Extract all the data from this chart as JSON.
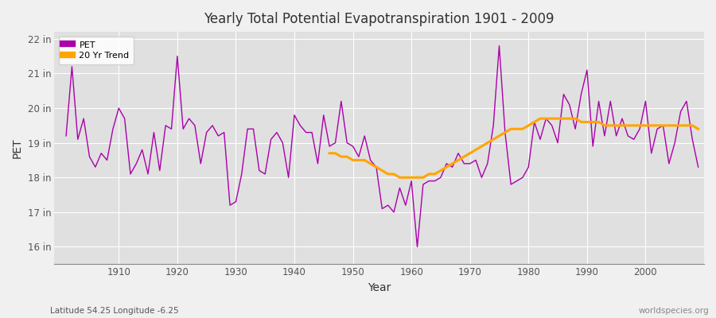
{
  "title": "Yearly Total Potential Evapotranspiration 1901 - 2009",
  "xlabel": "Year",
  "ylabel": "PET",
  "lat_lon_label": "Latitude 54.25 Longitude -6.25",
  "watermark": "worldspecies.org",
  "pet_color": "#AA00AA",
  "trend_color": "#FFA500",
  "bg_color": "#F0F0F0",
  "plot_bg_color": "#E0E0E0",
  "grid_color": "#FFFFFF",
  "ylim": [
    15.5,
    22.2
  ],
  "yticks": [
    16,
    17,
    18,
    19,
    20,
    21,
    22
  ],
  "ytick_labels": [
    "16 in",
    "17 in",
    "18 in",
    "19 in",
    "20 in",
    "21 in",
    "22 in"
  ],
  "xlim": [
    1899,
    2010
  ],
  "xticks": [
    1910,
    1920,
    1930,
    1940,
    1950,
    1960,
    1970,
    1980,
    1990,
    2000
  ],
  "years": [
    1901,
    1902,
    1903,
    1904,
    1905,
    1906,
    1907,
    1908,
    1909,
    1910,
    1911,
    1912,
    1913,
    1914,
    1915,
    1916,
    1917,
    1918,
    1919,
    1920,
    1921,
    1922,
    1923,
    1924,
    1925,
    1926,
    1927,
    1928,
    1929,
    1930,
    1931,
    1932,
    1933,
    1934,
    1935,
    1936,
    1937,
    1938,
    1939,
    1940,
    1941,
    1942,
    1943,
    1944,
    1945,
    1946,
    1947,
    1948,
    1949,
    1950,
    1951,
    1952,
    1953,
    1954,
    1955,
    1956,
    1957,
    1958,
    1959,
    1960,
    1961,
    1962,
    1963,
    1964,
    1965,
    1966,
    1967,
    1968,
    1969,
    1970,
    1971,
    1972,
    1973,
    1974,
    1975,
    1976,
    1977,
    1978,
    1979,
    1980,
    1981,
    1982,
    1983,
    1984,
    1985,
    1986,
    1987,
    1988,
    1989,
    1990,
    1991,
    1992,
    1993,
    1994,
    1995,
    1996,
    1997,
    1998,
    1999,
    2000,
    2001,
    2002,
    2003,
    2004,
    2005,
    2006,
    2007,
    2008,
    2009
  ],
  "pet_values": [
    19.2,
    21.2,
    19.1,
    19.7,
    18.6,
    18.3,
    18.7,
    18.5,
    19.4,
    20.0,
    19.7,
    18.1,
    18.4,
    18.8,
    18.1,
    19.3,
    18.2,
    19.5,
    19.4,
    21.5,
    19.4,
    19.7,
    19.5,
    18.4,
    19.3,
    19.5,
    19.2,
    19.3,
    17.2,
    17.3,
    18.1,
    19.4,
    19.4,
    18.2,
    18.1,
    19.1,
    19.3,
    19.0,
    18.0,
    19.8,
    19.5,
    19.3,
    19.3,
    18.4,
    19.8,
    18.9,
    19.0,
    20.2,
    19.0,
    18.9,
    18.6,
    19.2,
    18.5,
    18.3,
    17.1,
    17.2,
    17.0,
    17.7,
    17.2,
    17.9,
    16.0,
    17.8,
    17.9,
    17.9,
    18.0,
    18.4,
    18.3,
    18.7,
    18.4,
    18.4,
    18.5,
    18.0,
    18.4,
    19.5,
    21.8,
    19.3,
    17.8,
    17.9,
    18.0,
    18.3,
    19.6,
    19.1,
    19.7,
    19.5,
    19.0,
    20.4,
    20.1,
    19.4,
    20.4,
    21.1,
    18.9,
    20.2,
    19.2,
    20.2,
    19.2,
    19.7,
    19.2,
    19.1,
    19.4,
    20.2,
    18.7,
    19.4,
    19.5,
    18.4,
    19.0,
    19.9,
    20.2,
    19.1,
    18.3
  ],
  "trend_years": [
    1946,
    1947,
    1948,
    1949,
    1950,
    1951,
    1952,
    1953,
    1954,
    1955,
    1956,
    1957,
    1958,
    1959,
    1960,
    1961,
    1962,
    1963,
    1964,
    1965,
    1966,
    1967,
    1968,
    1969,
    1970,
    1971,
    1972,
    1973,
    1974,
    1975,
    1976,
    1977,
    1978,
    1979,
    1980,
    1981,
    1982,
    1983,
    1984,
    1985,
    1986,
    1987,
    1988,
    1989,
    1990,
    1991,
    1992,
    1993,
    1994,
    1995,
    1996,
    1997,
    1998,
    1999,
    2000,
    2001,
    2002,
    2003,
    2004,
    2005,
    2006,
    2007,
    2008,
    2009
  ],
  "trend_values": [
    18.7,
    18.7,
    18.6,
    18.6,
    18.5,
    18.5,
    18.5,
    18.4,
    18.3,
    18.2,
    18.1,
    18.1,
    18.0,
    18.0,
    18.0,
    18.0,
    18.0,
    18.1,
    18.1,
    18.2,
    18.3,
    18.4,
    18.5,
    18.6,
    18.7,
    18.8,
    18.9,
    19.0,
    19.1,
    19.2,
    19.3,
    19.4,
    19.4,
    19.4,
    19.5,
    19.6,
    19.7,
    19.7,
    19.7,
    19.7,
    19.7,
    19.7,
    19.7,
    19.6,
    19.6,
    19.6,
    19.6,
    19.5,
    19.5,
    19.5,
    19.5,
    19.5,
    19.5,
    19.5,
    19.5,
    19.5,
    19.5,
    19.5,
    19.5,
    19.5,
    19.5,
    19.5,
    19.5,
    19.4
  ]
}
